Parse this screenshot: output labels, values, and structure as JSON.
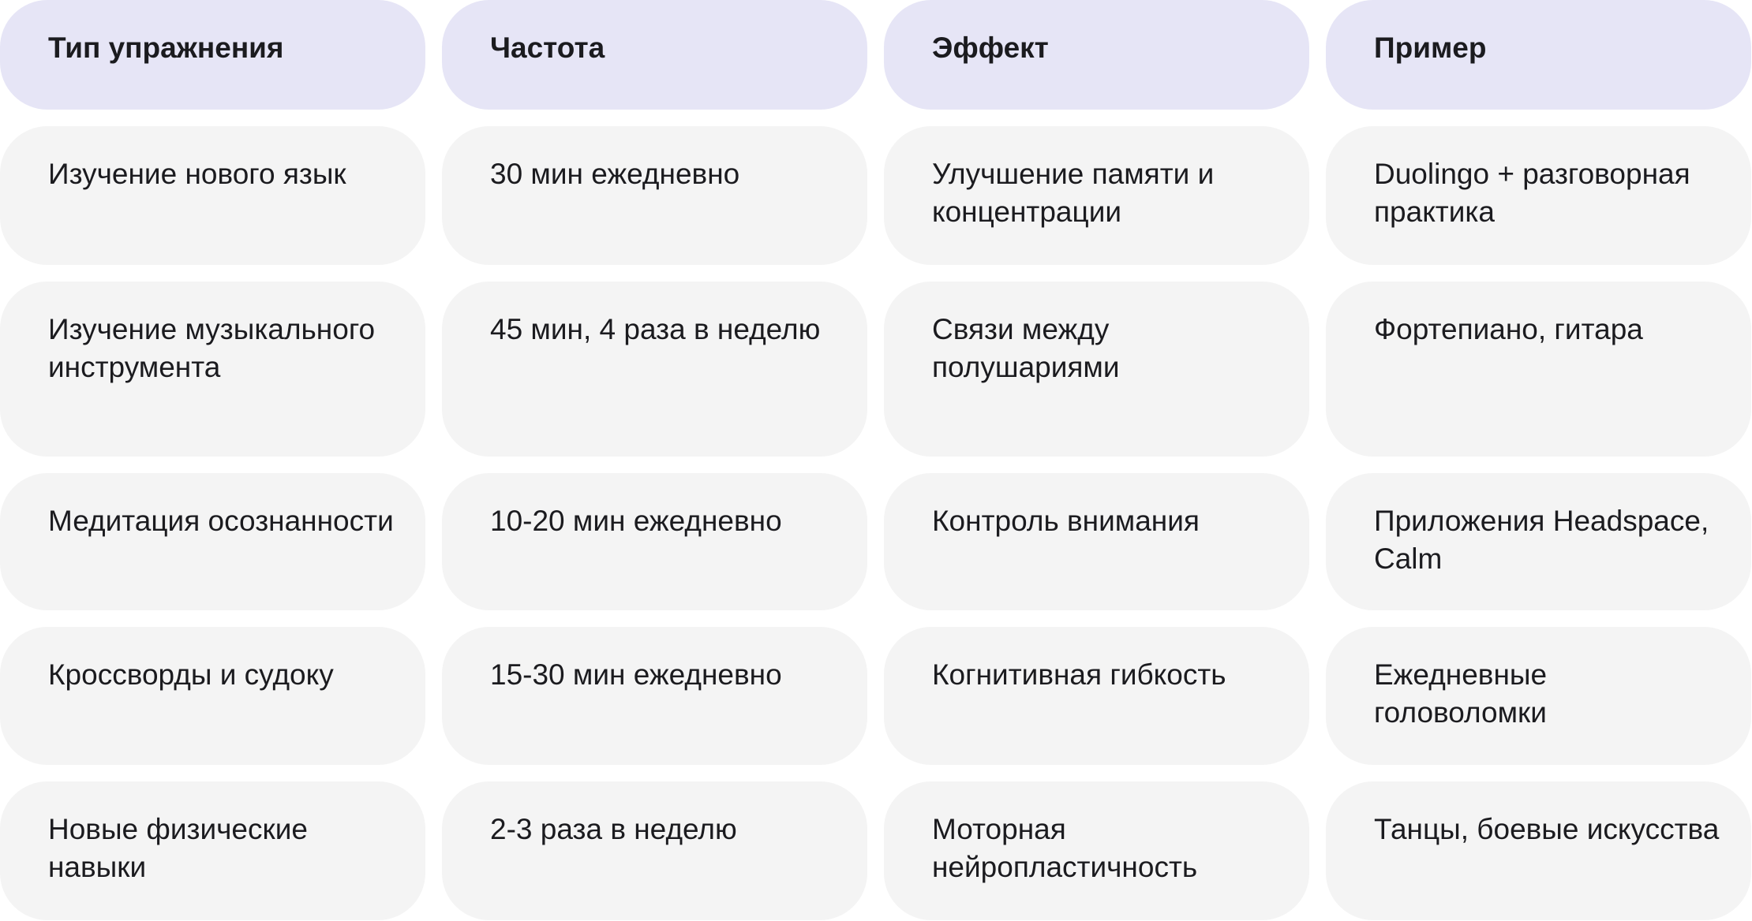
{
  "header": [
    "Тип упражнения",
    "Частота",
    "Эффект",
    "Пример"
  ],
  "rows": [
    [
      "Изучение нового язык",
      "30 мин ежедневно",
      "Улучшение памяти и концентрации",
      "Duolingo + разговорная практика"
    ],
    [
      "Изучение музыкального инструмента",
      "45 мин, 4 раза в неделю",
      "Связи между полушариями",
      "Фортепиано, гитара"
    ],
    [
      "Медитация осознанности",
      "10-20 мин ежедневно",
      "Контроль внимания",
      "Приложения Headspace, Calm"
    ],
    [
      "Кроссворды и судоку",
      "15-30 мин ежедневно",
      "Когнитивная гибкость",
      "Ежедневные головоломки"
    ],
    [
      "Новые физические навыки",
      "2-3 раза в неделю",
      "Моторная нейропластичность",
      "Танцы, боевые искусства"
    ]
  ],
  "colors": {
    "header_bg": "#e6e5f6",
    "cell_bg": "#f4f4f4",
    "text": "#1b1b1f"
  }
}
